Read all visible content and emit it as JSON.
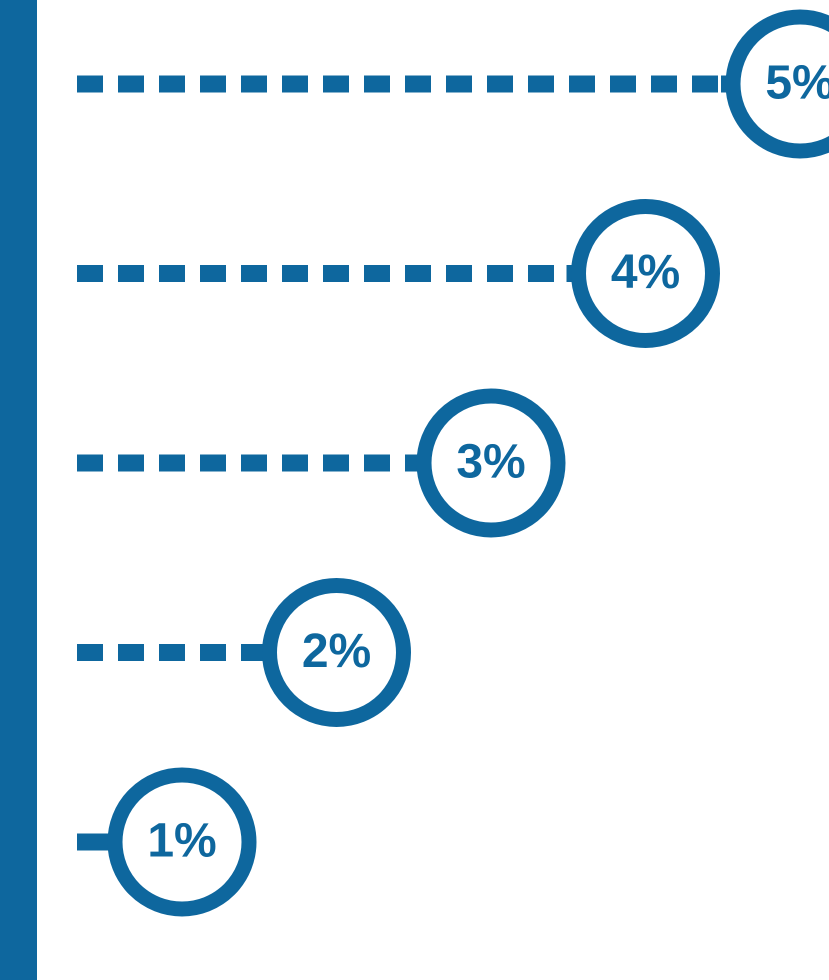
{
  "colors": {
    "primary": "#0e679e",
    "background": "#ffffff"
  },
  "chart_data": {
    "type": "bar",
    "orientation": "horizontal",
    "style": "dashed-leader-lollipop",
    "categories": [
      "1%",
      "2%",
      "3%",
      "4%",
      "5%"
    ],
    "values": [
      1,
      2,
      3,
      4,
      5
    ],
    "labels": [
      "1%",
      "2%",
      "3%",
      "4%",
      "5%"
    ],
    "unit": "%",
    "xlim": [
      0,
      5
    ],
    "grid": false,
    "legend": "none",
    "title": "",
    "xlabel": "",
    "ylabel": ""
  }
}
